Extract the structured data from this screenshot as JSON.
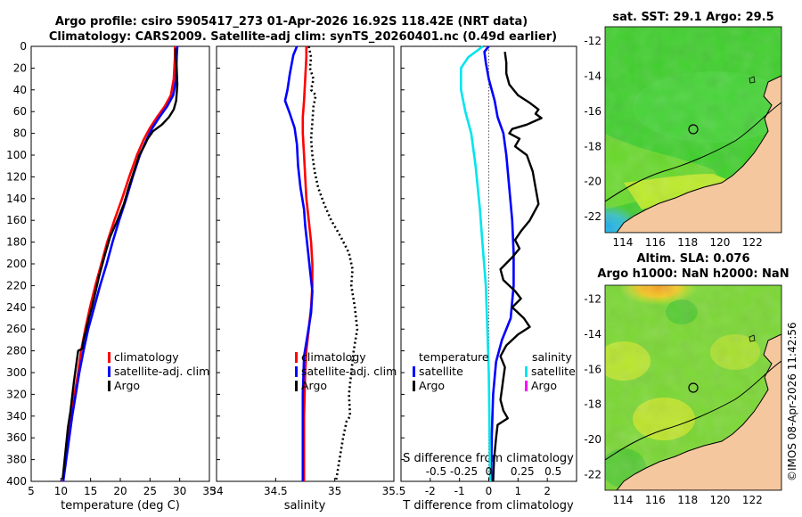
{
  "titles": {
    "line1": "Argo profile: csiro 5905417_273 01-Apr-2026 16.92S 118.42E (NRT data)",
    "line2": "Climatology: CARS2009. Satellite-adj clim: synTS_20260401.nc (0.49d earlier)",
    "map_top": "sat. SST: 29.1 Argo: 29.5",
    "map_bottom_1": "Altim. SLA: 0.076",
    "map_bottom_2": "Argo h1000: NaN h2000: NaN",
    "credit": "©IMOS 08-Apr-2026 11:42:56"
  },
  "colors": {
    "climatology": "#ff0000",
    "satellite": "#0000ff",
    "argo": "#000000",
    "satellite_s": "#00e5ee",
    "argo_s": "#ff00ff",
    "land": "#f5c79e"
  },
  "legend_profiles": [
    "climatology",
    "satellite-adj. clim",
    "Argo"
  ],
  "legend_diff": {
    "temperature_title": "temperature",
    "salinity_title": "salinity",
    "t_satellite": "satellite",
    "t_argo": "Argo",
    "s_satellite": "satellite",
    "s_argo": "Argo"
  },
  "chart_data": [
    {
      "type": "line",
      "name": "temperature",
      "xlabel": "temperature (deg C)",
      "xlim": [
        5,
        35
      ],
      "ylim": [
        0,
        400
      ],
      "xticks": [
        5,
        10,
        15,
        20,
        25,
        30,
        35
      ],
      "yticks": [
        0,
        20,
        40,
        60,
        80,
        100,
        120,
        140,
        160,
        180,
        200,
        220,
        240,
        260,
        280,
        300,
        320,
        340,
        360,
        380,
        400
      ],
      "series": [
        {
          "name": "climatology",
          "color": "#ff0000",
          "points": [
            [
              29.2,
              0
            ],
            [
              29.2,
              10
            ],
            [
              29.0,
              30
            ],
            [
              28.5,
              45
            ],
            [
              27.5,
              55
            ],
            [
              26.2,
              65
            ],
            [
              25.0,
              75
            ],
            [
              24.0,
              85
            ],
            [
              22.8,
              100
            ],
            [
              21.5,
              120
            ],
            [
              20.3,
              140
            ],
            [
              19.0,
              160
            ],
            [
              17.8,
              180
            ],
            [
              16.8,
              200
            ],
            [
              15.8,
              220
            ],
            [
              14.9,
              240
            ],
            [
              14.1,
              260
            ],
            [
              13.4,
              280
            ],
            [
              12.9,
              300
            ],
            [
              12.3,
              320
            ],
            [
              11.8,
              340
            ],
            [
              11.3,
              360
            ],
            [
              10.8,
              380
            ],
            [
              10.3,
              400
            ]
          ]
        },
        {
          "name": "satellite-adj. clim",
          "color": "#0000ff",
          "points": [
            [
              29.6,
              0
            ],
            [
              29.5,
              10
            ],
            [
              29.4,
              30
            ],
            [
              28.9,
              45
            ],
            [
              27.9,
              55
            ],
            [
              26.6,
              65
            ],
            [
              25.4,
              75
            ],
            [
              24.5,
              85
            ],
            [
              23.3,
              100
            ],
            [
              22.1,
              120
            ],
            [
              21.0,
              140
            ],
            [
              19.8,
              160
            ],
            [
              18.7,
              180
            ],
            [
              17.7,
              200
            ],
            [
              16.6,
              220
            ],
            [
              15.6,
              240
            ],
            [
              14.6,
              260
            ],
            [
              13.8,
              280
            ],
            [
              13.1,
              300
            ],
            [
              12.5,
              320
            ],
            [
              11.9,
              340
            ],
            [
              11.4,
              360
            ],
            [
              10.9,
              380
            ],
            [
              10.4,
              400
            ]
          ]
        },
        {
          "name": "Argo",
          "color": "#000000",
          "points": [
            [
              29.3,
              2
            ],
            [
              29.3,
              10
            ],
            [
              29.5,
              20
            ],
            [
              29.6,
              35
            ],
            [
              29.4,
              50
            ],
            [
              29.0,
              58
            ],
            [
              28.2,
              65
            ],
            [
              27.0,
              72
            ],
            [
              25.5,
              78
            ],
            [
              24.6,
              85
            ],
            [
              24.0,
              92
            ],
            [
              23.2,
              100
            ],
            [
              22.3,
              115
            ],
            [
              21.4,
              130
            ],
            [
              20.6,
              145
            ],
            [
              19.5,
              160
            ],
            [
              18.3,
              175
            ],
            [
              17.5,
              190
            ],
            [
              17.0,
              200
            ],
            [
              16.4,
              212
            ],
            [
              15.9,
              224
            ],
            [
              15.3,
              238
            ],
            [
              14.7,
              250
            ],
            [
              14.2,
              262
            ],
            [
              13.8,
              270
            ],
            [
              13.6,
              278
            ],
            [
              12.9,
              280
            ],
            [
              12.6,
              292
            ],
            [
              12.2,
              308
            ],
            [
              11.9,
              322
            ],
            [
              11.6,
              336
            ],
            [
              11.2,
              350
            ],
            [
              10.9,
              366
            ],
            [
              10.6,
              382
            ],
            [
              10.3,
              398
            ]
          ]
        }
      ]
    },
    {
      "type": "line",
      "name": "salinity",
      "xlabel": "salinity",
      "xlim": [
        34,
        35.5
      ],
      "ylim": [
        0,
        400
      ],
      "xticks": [
        34,
        34.5,
        35,
        35.5
      ],
      "series": [
        {
          "name": "climatology",
          "color": "#ff0000",
          "points": [
            [
              34.76,
              0
            ],
            [
              34.76,
              10
            ],
            [
              34.75,
              30
            ],
            [
              34.74,
              50
            ],
            [
              34.73,
              65
            ],
            [
              34.73,
              80
            ],
            [
              34.74,
              100
            ],
            [
              34.75,
              120
            ],
            [
              34.76,
              140
            ],
            [
              34.78,
              160
            ],
            [
              34.8,
              180
            ],
            [
              34.81,
              200
            ],
            [
              34.81,
              220
            ],
            [
              34.8,
              240
            ],
            [
              34.78,
              260
            ],
            [
              34.76,
              280
            ],
            [
              34.75,
              300
            ],
            [
              34.74,
              340
            ],
            [
              34.74,
              400
            ]
          ]
        },
        {
          "name": "satellite-adj. clim",
          "color": "#0000ff",
          "points": [
            [
              34.68,
              0
            ],
            [
              34.65,
              8
            ],
            [
              34.62,
              25
            ],
            [
              34.6,
              40
            ],
            [
              34.58,
              50
            ],
            [
              34.62,
              62
            ],
            [
              34.66,
              75
            ],
            [
              34.68,
              90
            ],
            [
              34.69,
              110
            ],
            [
              34.71,
              130
            ],
            [
              34.74,
              150
            ],
            [
              34.75,
              165
            ],
            [
              34.77,
              185
            ],
            [
              34.79,
              205
            ],
            [
              34.81,
              225
            ],
            [
              34.8,
              245
            ],
            [
              34.77,
              265
            ],
            [
              34.74,
              285
            ],
            [
              34.73,
              320
            ],
            [
              34.73,
              400
            ]
          ]
        },
        {
          "name": "Argo",
          "color": "#000000",
          "points": [
            [
              34.78,
              0
            ],
            [
              34.8,
              10
            ],
            [
              34.79,
              20
            ],
            [
              34.82,
              30
            ],
            [
              34.8,
              40
            ],
            [
              34.84,
              45
            ],
            [
              34.82,
              55
            ],
            [
              34.81,
              70
            ],
            [
              34.8,
              85
            ],
            [
              34.81,
              100
            ],
            [
              34.83,
              115
            ],
            [
              34.86,
              130
            ],
            [
              34.91,
              145
            ],
            [
              34.97,
              160
            ],
            [
              35.05,
              175
            ],
            [
              35.12,
              190
            ],
            [
              35.15,
              205
            ],
            [
              35.14,
              220
            ],
            [
              35.17,
              240
            ],
            [
              35.19,
              260
            ],
            [
              35.16,
              280
            ],
            [
              35.14,
              300
            ],
            [
              35.12,
              320
            ],
            [
              35.13,
              340
            ],
            [
              35.1,
              345
            ],
            [
              35.07,
              360
            ],
            [
              35.04,
              380
            ],
            [
              35.01,
              400
            ]
          ]
        }
      ]
    },
    {
      "type": "line",
      "name": "difference",
      "xlabel": "T difference from climatology",
      "top_axis_label": "S difference from climatology",
      "xlim": [
        -3,
        3
      ],
      "ylim": [
        0,
        400
      ],
      "xticks": [
        -2,
        -1,
        0,
        1,
        2
      ],
      "top_ticks": [
        "-0.5",
        "-0.25",
        "0",
        "0.25",
        "0.5"
      ],
      "series": [
        {
          "name": "satellite (temperature)",
          "color": "#0000ff",
          "points": [
            [
              0,
              0
            ],
            [
              -0.15,
              5
            ],
            [
              -0.1,
              15
            ],
            [
              0.0,
              30
            ],
            [
              0.2,
              50
            ],
            [
              0.3,
              65
            ],
            [
              0.5,
              80
            ],
            [
              0.6,
              100
            ],
            [
              0.7,
              130
            ],
            [
              0.8,
              160
            ],
            [
              0.85,
              190
            ],
            [
              0.85,
              220
            ],
            [
              0.75,
              250
            ],
            [
              0.45,
              270
            ],
            [
              0.25,
              290
            ],
            [
              0.15,
              320
            ],
            [
              0.1,
              360
            ],
            [
              0.08,
              400
            ]
          ]
        },
        {
          "name": "satellite (salinity)",
          "color": "#00e5ee",
          "points": [
            [
              -0.2,
              0
            ],
            [
              -0.7,
              10
            ],
            [
              -0.95,
              20
            ],
            [
              -0.95,
              40
            ],
            [
              -0.8,
              60
            ],
            [
              -0.6,
              80
            ],
            [
              -0.45,
              110
            ],
            [
              -0.3,
              150
            ],
            [
              -0.22,
              180
            ],
            [
              -0.1,
              220
            ],
            [
              -0.05,
              260
            ],
            [
              0.0,
              300
            ],
            [
              0.05,
              400
            ]
          ]
        },
        {
          "name": "Argo (temperature)",
          "color": "#000000",
          "points": [
            [
              0.55,
              5
            ],
            [
              0.6,
              15
            ],
            [
              0.6,
              25
            ],
            [
              0.7,
              35
            ],
            [
              1.0,
              45
            ],
            [
              1.4,
              52
            ],
            [
              1.7,
              58
            ],
            [
              1.6,
              62
            ],
            [
              1.8,
              66
            ],
            [
              1.3,
              72
            ],
            [
              0.8,
              76
            ],
            [
              0.7,
              80
            ],
            [
              1.05,
              85
            ],
            [
              0.9,
              92
            ],
            [
              1.3,
              100
            ],
            [
              1.5,
              115
            ],
            [
              1.6,
              130
            ],
            [
              1.7,
              145
            ],
            [
              1.4,
              160
            ],
            [
              1.1,
              170
            ],
            [
              0.9,
              178
            ],
            [
              1.05,
              186
            ],
            [
              0.8,
              194
            ],
            [
              0.4,
              205
            ],
            [
              0.5,
              215
            ],
            [
              0.9,
              225
            ],
            [
              1.1,
              232
            ],
            [
              0.8,
              240
            ],
            [
              1.2,
              250
            ],
            [
              1.4,
              258
            ],
            [
              1.0,
              265
            ],
            [
              0.6,
              275
            ],
            [
              0.4,
              285
            ],
            [
              0.55,
              295
            ],
            [
              0.5,
              305
            ],
            [
              0.45,
              315
            ],
            [
              0.4,
              325
            ],
            [
              0.5,
              335
            ],
            [
              0.65,
              342
            ],
            [
              0.3,
              348
            ],
            [
              0.25,
              360
            ],
            [
              0.18,
              380
            ],
            [
              0.15,
              400
            ]
          ]
        },
        {
          "name": "Argo (salinity)",
          "color": "#ff00ff",
          "points": []
        }
      ]
    },
    {
      "type": "heatmap",
      "name": "sat-sst-map",
      "title": "sat. SST: 29.1 Argo: 29.5",
      "xticks": [
        114,
        116,
        118,
        120,
        122
      ],
      "yticks": [
        -12,
        -14,
        -16,
        -18,
        -20,
        -22
      ],
      "xlim": [
        112.9,
        123.8
      ],
      "ylim": [
        -22.9,
        -11.2
      ],
      "marker": [
        118.42,
        -16.92
      ]
    },
    {
      "type": "heatmap",
      "name": "altimetry-sla-map",
      "title": "Altim. SLA: 0.076",
      "xticks": [
        114,
        116,
        118,
        120,
        122
      ],
      "yticks": [
        -12,
        -14,
        -16,
        -18,
        -20,
        -22
      ],
      "xlim": [
        112.9,
        123.8
      ],
      "ylim": [
        -22.9,
        -11.2
      ],
      "marker": [
        118.42,
        -16.92
      ]
    }
  ]
}
